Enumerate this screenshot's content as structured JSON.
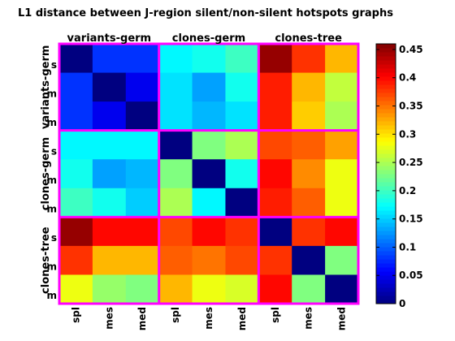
{
  "chart_data": {
    "type": "heatmap",
    "title": "L1 distance between J-region silent/non-silent hotspots graphs",
    "groups": [
      "variants-germ",
      "clones-germ",
      "clones-tree"
    ],
    "sub_labels": [
      "s",
      "m",
      "m"
    ],
    "x_tick_labels": [
      "spl",
      "mes",
      "med",
      "spl",
      "mes",
      "med",
      "spl",
      "mes",
      "med"
    ],
    "values": [
      [
        0.0,
        0.08,
        0.08,
        0.17,
        0.18,
        0.2,
        0.45,
        0.38,
        0.32
      ],
      [
        0.08,
        0.0,
        0.05,
        0.16,
        0.13,
        0.18,
        0.39,
        0.32,
        0.26
      ],
      [
        0.08,
        0.05,
        0.0,
        0.16,
        0.14,
        0.16,
        0.39,
        0.31,
        0.25
      ],
      [
        0.17,
        0.17,
        0.17,
        0.0,
        0.23,
        0.25,
        0.37,
        0.36,
        0.33
      ],
      [
        0.18,
        0.13,
        0.14,
        0.23,
        0.0,
        0.18,
        0.4,
        0.34,
        0.28
      ],
      [
        0.2,
        0.18,
        0.15,
        0.25,
        0.17,
        0.0,
        0.39,
        0.36,
        0.28
      ],
      [
        0.45,
        0.4,
        0.4,
        0.37,
        0.4,
        0.38,
        0.0,
        0.38,
        0.4
      ],
      [
        0.38,
        0.32,
        0.32,
        0.36,
        0.35,
        0.37,
        0.38,
        0.0,
        0.23
      ],
      [
        0.28,
        0.24,
        0.23,
        0.32,
        0.28,
        0.27,
        0.4,
        0.23,
        0.0
      ]
    ],
    "colorbar": {
      "range": [
        0,
        0.46
      ],
      "ticks": [
        "0",
        "0.05",
        "0.1",
        "0.15",
        "0.2",
        "0.25",
        "0.3",
        "0.35",
        "0.4",
        "0.45"
      ],
      "colormap": "jet"
    },
    "separator_color": "#ff00ff"
  }
}
